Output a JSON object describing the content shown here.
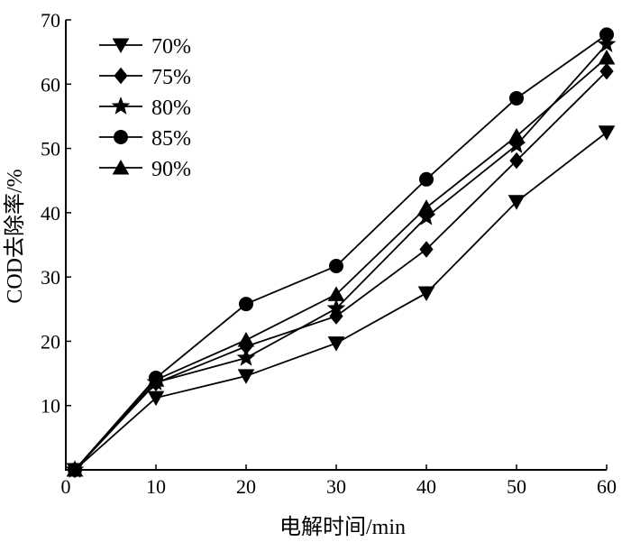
{
  "chart_data": {
    "type": "line",
    "xlabel": "电解时间/min",
    "ylabel": "COD去除率/%",
    "xlim": [
      0,
      60
    ],
    "ylim": [
      0,
      70
    ],
    "xticks": [
      0,
      10,
      20,
      30,
      40,
      50,
      60
    ],
    "yticks": [
      10,
      20,
      30,
      40,
      50,
      60,
      70
    ],
    "grid": false,
    "legend_position": "top-left",
    "x": [
      1,
      10,
      20,
      30,
      40,
      50,
      60
    ],
    "series": [
      {
        "name": "70%",
        "marker": "triangle-down",
        "values": [
          0,
          11.2,
          14.6,
          19.7,
          27.5,
          41.7,
          52.5
        ]
      },
      {
        "name": "75%",
        "marker": "diamond",
        "values": [
          0,
          13.5,
          19.2,
          23.9,
          34.3,
          48.1,
          62.0
        ]
      },
      {
        "name": "80%",
        "marker": "star",
        "values": [
          0,
          13.6,
          17.4,
          25.1,
          39.3,
          50.5,
          66.2
        ]
      },
      {
        "name": "85%",
        "marker": "circle",
        "values": [
          0,
          14.3,
          25.8,
          31.7,
          45.2,
          57.8,
          67.7
        ]
      },
      {
        "name": "90%",
        "marker": "triangle-up",
        "values": [
          0,
          14.0,
          20.2,
          27.3,
          40.8,
          51.9,
          64.1
        ]
      }
    ]
  }
}
